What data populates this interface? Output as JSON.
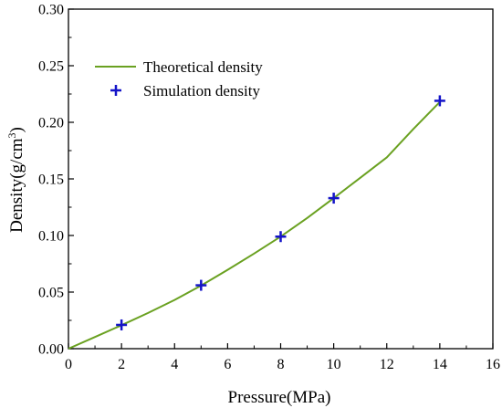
{
  "chart_data": {
    "type": "line",
    "title": "",
    "xlabel": "Pressure(MPa)",
    "ylabel_main": "Density(g/cm",
    "ylabel_sup": "3",
    "ylabel_close": ")",
    "xlim": [
      0,
      16
    ],
    "ylim": [
      0,
      0.3
    ],
    "x_ticks": [
      0,
      2,
      4,
      6,
      8,
      10,
      12,
      14,
      16
    ],
    "x_tick_labels": [
      "0",
      "2",
      "4",
      "6",
      "8",
      "10",
      "12",
      "14",
      "16"
    ],
    "y_ticks": [
      0,
      0.05,
      0.1,
      0.15,
      0.2,
      0.25,
      0.3
    ],
    "y_tick_labels": [
      "0.00",
      "0.05",
      "0.10",
      "0.15",
      "0.20",
      "0.25",
      "0.30"
    ],
    "grid": false,
    "legend_placement": "top-left",
    "series": [
      {
        "name": "Theoretical density",
        "kind": "line",
        "color": "#6aa121",
        "x": [
          0,
          1,
          2,
          3,
          4,
          5,
          6,
          7,
          8,
          9,
          10,
          11,
          12,
          13,
          14
        ],
        "y": [
          0,
          0.0103,
          0.0207,
          0.0315,
          0.0431,
          0.0557,
          0.0697,
          0.084,
          0.099,
          0.1155,
          0.133,
          0.151,
          0.169,
          0.194,
          0.218
        ]
      },
      {
        "name": "Simulation density",
        "kind": "scatter",
        "marker": "plus",
        "color": "#1414c8",
        "x": [
          2,
          5,
          8,
          10,
          14
        ],
        "y": [
          0.021,
          0.056,
          0.099,
          0.133,
          0.219
        ]
      }
    ]
  }
}
